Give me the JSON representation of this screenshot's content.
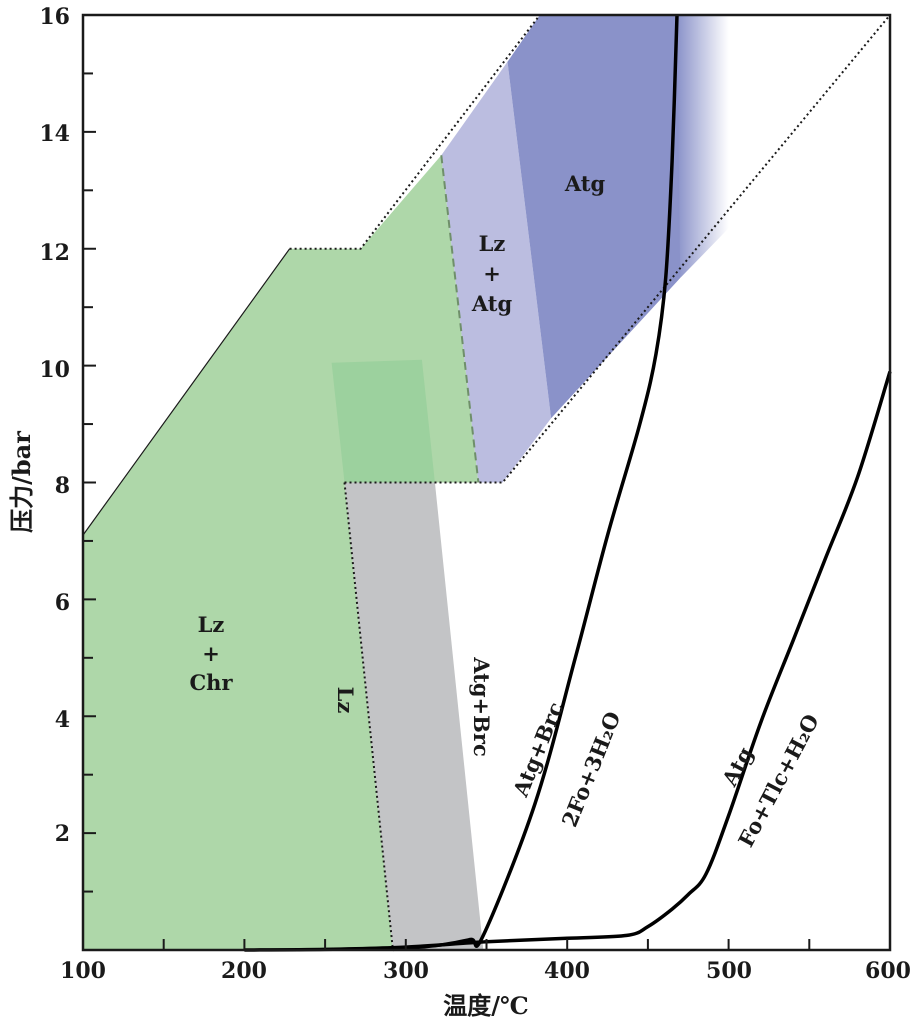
{
  "chart_data": {
    "type": "phase-diagram",
    "xlabel": "温度/℃",
    "ylabel": "压力/bar",
    "xlim": [
      100,
      600
    ],
    "ylim": [
      0,
      16
    ],
    "xticks": [
      100,
      200,
      300,
      400,
      500,
      600
    ],
    "yticks": [
      2,
      4,
      6,
      8,
      10,
      12,
      14,
      16
    ],
    "colors": {
      "green": "#aed7a9",
      "green_dark": "#9cd19e",
      "gray": "#c3c4c6",
      "lavender": "#bbbde0",
      "blue": "#8a92c9",
      "blue_fade": "#ffffff"
    },
    "regions": [
      {
        "name": "green",
        "points": [
          [
            100,
            0
          ],
          [
            100,
            7.1
          ],
          [
            228,
            12.0
          ],
          [
            272,
            12.0
          ],
          [
            322,
            13.6
          ],
          [
            345,
            8
          ],
          [
            262,
            8
          ],
          [
            292,
            0
          ]
        ]
      },
      {
        "name": "green_dark",
        "points": [
          [
            254,
            10.05
          ],
          [
            310,
            10.1
          ],
          [
            318,
            8
          ],
          [
            262,
            8
          ]
        ]
      },
      {
        "name": "gray",
        "points": [
          [
            262,
            8
          ],
          [
            318,
            8
          ],
          [
            348,
            0
          ],
          [
            292,
            0
          ]
        ]
      },
      {
        "name": "lavender",
        "points": [
          [
            322,
            13.6
          ],
          [
            363,
            15.2
          ],
          [
            390,
            9.1
          ],
          [
            360,
            8
          ],
          [
            345,
            8
          ]
        ]
      },
      {
        "name": "blue",
        "points": [
          [
            363,
            15.2
          ],
          [
            383,
            16
          ],
          [
            468,
            16
          ],
          [
            498,
            16
          ],
          [
            470,
            11.5
          ],
          [
            390,
            9.1
          ]
        ]
      }
    ],
    "boundaries": [
      {
        "style": "dotted",
        "points": [
          [
            228,
            12.0
          ],
          [
            272,
            12.0
          ],
          [
            383,
            16
          ]
        ]
      },
      {
        "style": "dotted",
        "points": [
          [
            262,
            8
          ],
          [
            360,
            8
          ],
          [
            600,
            16
          ]
        ]
      },
      {
        "style": "dotted",
        "points": [
          [
            262,
            8
          ],
          [
            292,
            0
          ]
        ]
      },
      {
        "style": "dashed",
        "points": [
          [
            322,
            13.6
          ],
          [
            345,
            8
          ]
        ]
      },
      {
        "style": "thin",
        "points": [
          [
            100,
            7.1
          ],
          [
            228,
            12.0
          ]
        ]
      }
    ],
    "curves": [
      {
        "name": "Atg+Brc = 2Fo+3H2O",
        "points": [
          [
            292,
            0.01
          ],
          [
            320,
            0.08
          ],
          [
            340,
            0.18
          ],
          [
            348,
            0.25
          ],
          [
            380,
            2.5
          ],
          [
            405,
            5.0
          ],
          [
            425,
            7.1
          ],
          [
            445,
            9.0
          ],
          [
            455,
            10.2
          ],
          [
            461,
            11.5
          ],
          [
            465,
            13.5
          ],
          [
            468,
            16
          ]
        ]
      },
      {
        "name": "Atg = Fo+Tlc+H2O",
        "points": [
          [
            200,
            0
          ],
          [
            250,
            0.01
          ],
          [
            300,
            0.05
          ],
          [
            350,
            0.14
          ],
          [
            400,
            0.2
          ],
          [
            437,
            0.25
          ],
          [
            450,
            0.4
          ],
          [
            465,
            0.7
          ],
          [
            475,
            0.95
          ],
          [
            486,
            1.3
          ],
          [
            500,
            2.3
          ],
          [
            520,
            3.9
          ],
          [
            540,
            5.3
          ],
          [
            560,
            6.7
          ],
          [
            580,
            8.1
          ],
          [
            600,
            9.9
          ]
        ]
      }
    ],
    "labels": {
      "lz_chr": [
        "Lz",
        "+",
        "Chr"
      ],
      "lz_atg": [
        "Lz",
        "+",
        "Atg"
      ],
      "atg": "Atg",
      "lz_line": "Lz",
      "atg_brc_left": "Atg+Brc",
      "atg_brc_curve": "Atg+Brc",
      "fo_h2o_curve": "2Fo+3H₂O",
      "atg_curve": "Atg",
      "fo_tlc_curve": "Fo+Tlc+H₂O"
    }
  }
}
